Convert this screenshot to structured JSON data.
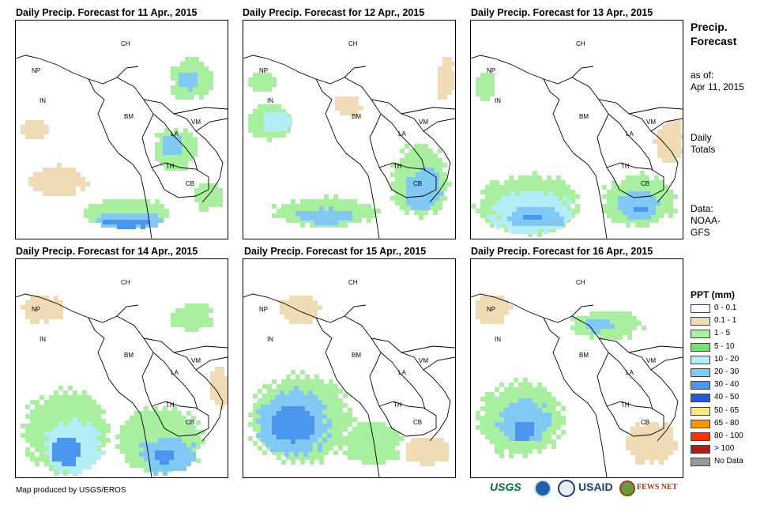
{
  "panels": [
    {
      "title": "Daily Precip. Forecast for 11 Apr., 2015"
    },
    {
      "title": "Daily Precip. Forecast for 12 Apr., 2015"
    },
    {
      "title": "Daily Precip. Forecast for 13 Apr., 2015"
    },
    {
      "title": "Daily Precip. Forecast for 14 Apr., 2015"
    },
    {
      "title": "Daily Precip. Forecast for 15 Apr., 2015"
    },
    {
      "title": "Daily Precip. Forecast for 16 Apr., 2015"
    }
  ],
  "country_labels": [
    "CH",
    "NP",
    "IN",
    "BM",
    "LA",
    "VM",
    "TH",
    "CB"
  ],
  "side": {
    "title_line1": "Precip.",
    "title_line2": "Forecast",
    "asof_line1": "as of:",
    "asof_line2": "Apr 11, 2015",
    "totals_line1": "Daily",
    "totals_line2": "Totals",
    "data_line1": "Data:",
    "data_line2": "NOAA-",
    "data_line3": "GFS"
  },
  "legend": {
    "title": "PPT (mm)",
    "items": [
      {
        "label": "0 - 0.1",
        "color": "#ffffff"
      },
      {
        "label": "0.1 - 1",
        "color": "#f0dcb4"
      },
      {
        "label": "1 - 5",
        "color": "#a8f0a0"
      },
      {
        "label": "5 - 10",
        "color": "#6ee66e"
      },
      {
        "label": "10 - 20",
        "color": "#b4ecf8"
      },
      {
        "label": "20 - 30",
        "color": "#82c8f5"
      },
      {
        "label": "30 - 40",
        "color": "#4b96ee"
      },
      {
        "label": "40 - 50",
        "color": "#1e5ae6"
      },
      {
        "label": "50 - 65",
        "color": "#fae682"
      },
      {
        "label": "65 - 80",
        "color": "#fa9600"
      },
      {
        "label": "80 - 100",
        "color": "#fa3200"
      },
      {
        "label": "> 100",
        "color": "#aa1e1e"
      },
      {
        "label": "No Data",
        "color": "#999999"
      }
    ]
  },
  "credit": "Map produced by USGS/EROS",
  "logos": {
    "usgs": "USGS",
    "usaid": "USAID",
    "fewsnet": "FEWS NET"
  }
}
